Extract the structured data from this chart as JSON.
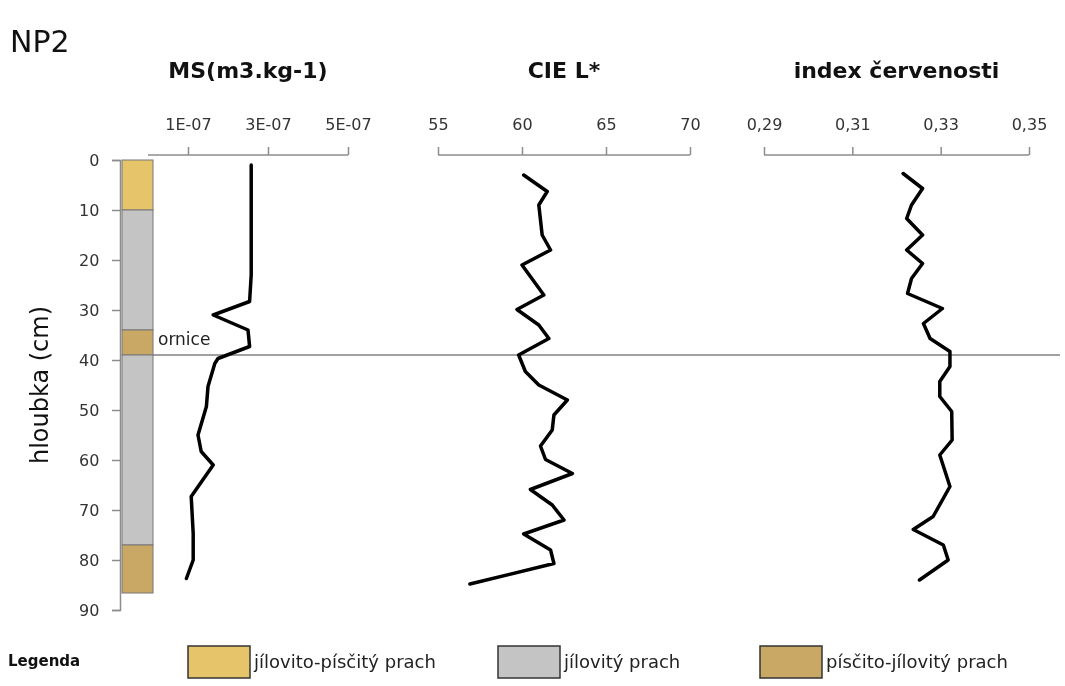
{
  "chart_data": [
    {
      "type": "bar",
      "stacked": true,
      "categories": [
        null
      ],
      "ylabel": "hloubka (cm)",
      "annotations": [
        "NP2"
      ],
      "tick_labels": "y",
      "ylim": [
        90,
        0
      ],
      "yticks": [
        0,
        10,
        20,
        30,
        40,
        50,
        60,
        70,
        80,
        90
      ],
      "legend": "bottom",
      "legend_title": "Legenda",
      "series": [
        {
          "name": "jílovito-písčitý prach",
          "color": "#e6c56a",
          "values": [
            10
          ]
        },
        {
          "name": "jílovitý prach",
          "color": "#c4c4c4",
          "values": [
            24
          ]
        },
        {
          "name": "písčito-jílovitý prach",
          "color": "#c9a865",
          "values": [
            5
          ]
        },
        {
          "color": "#c4c4c4",
          "values": [
            38
          ]
        },
        {
          "color": "#c9a865",
          "values": [
            9.6
          ]
        }
      ]
    },
    {
      "type": "line",
      "title": "MS(m3.kg-1)",
      "tick_labels": "x",
      "xlim": [
        0,
        5e-07
      ],
      "xticks": [
        {
          "value": 1e-07,
          "label": "1E-07"
        },
        {
          "value": 3e-07,
          "label": "3E-07"
        },
        {
          "value": 5e-07,
          "label": "5E-07"
        }
      ],
      "ylim": [
        90,
        0
      ],
      "ref_lines": [
        {
          "axis": "y",
          "value": 39,
          "label": "ornice",
          "color": "#808080"
        }
      ],
      "series": [
        {
          "color": "#000000",
          "x": [
            2.58e-07,
            2.58e-07,
            2.54e-07,
            1.63e-07,
            2.5e-07,
            2.54e-07,
            1.75e-07,
            1.67e-07,
            1.5e-07,
            1.46e-07,
            1.25e-07,
            1.33e-07,
            1.63e-07,
            1.08e-07,
            1.13e-07,
            1.13e-07,
            9.6e-08
          ],
          "values": [
            1,
            23,
            28.3,
            31,
            34,
            37.3,
            39.7,
            40.7,
            45.3,
            49.3,
            55,
            58.3,
            61,
            67.3,
            74.7,
            80,
            83.7
          ]
        }
      ]
    },
    {
      "type": "line",
      "title": "CIE L*",
      "tick_labels": "x",
      "xlim": [
        55,
        70
      ],
      "xticks": [
        55,
        60,
        65,
        70
      ],
      "ylim": [
        90,
        0
      ],
      "ref_lines": [
        {
          "axis": "y",
          "value": 39,
          "color": "#808080"
        }
      ],
      "series": [
        {
          "color": "#000000",
          "x": [
            60.1,
            61.5,
            61,
            61.2,
            61.7,
            60,
            61.3,
            59.7,
            61,
            61.6,
            59.8,
            60.2,
            61,
            62.7,
            61.9,
            61.8,
            61.1,
            61.4,
            63,
            60.5,
            61.8,
            62.5,
            60.1,
            61.7,
            61.9,
            56.9
          ],
          "values": [
            3,
            6.3,
            9,
            15,
            18,
            21,
            27,
            29.9,
            33,
            35.7,
            39,
            42.3,
            45,
            48,
            51,
            54,
            57.2,
            59.9,
            62.7,
            65.9,
            69,
            72,
            74.8,
            78,
            80.7,
            84.8
          ]
        }
      ]
    },
    {
      "type": "line",
      "title": "index červenosti",
      "tick_labels": "x",
      "xlim": [
        0.29,
        0.35
      ],
      "xticks": [
        {
          "value": 0.29,
          "label": "0,29"
        },
        {
          "value": 0.31,
          "label": "0,31"
        },
        {
          "value": 0.33,
          "label": "0,33"
        },
        {
          "value": 0.35,
          "label": "0,35"
        }
      ],
      "ylim": [
        90,
        0
      ],
      "ref_lines": [
        {
          "axis": "y",
          "value": 39,
          "color": "#808080"
        }
      ],
      "series": [
        {
          "color": "#000000",
          "x": [
            0.3215,
            0.3259,
            0.3234,
            0.3223,
            0.3259,
            0.3223,
            0.3259,
            0.3234,
            0.3225,
            0.3304,
            0.3261,
            0.3276,
            0.3321,
            0.3321,
            0.3298,
            0.3298,
            0.3325,
            0.3326,
            0.3298,
            0.3321,
            0.3283,
            0.3238,
            0.3306,
            0.3317,
            0.3252
          ],
          "values": [
            2.7,
            5.7,
            9,
            11.7,
            15,
            18,
            20.7,
            23.7,
            26.7,
            29.7,
            32.7,
            35.7,
            38.3,
            41.3,
            44.3,
            47.3,
            50.3,
            56,
            59,
            65.3,
            71.3,
            73.9,
            77,
            80,
            84
          ]
        }
      ]
    }
  ]
}
